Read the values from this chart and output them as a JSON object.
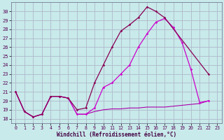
{
  "bg_color": "#c8eaea",
  "grid_color": "#b0b8cc",
  "xlabel": "Windchill (Refroidissement éolien,°C)",
  "xlim": [
    -0.5,
    23.5
  ],
  "ylim": [
    17.5,
    31.0
  ],
  "yticks": [
    18,
    19,
    20,
    21,
    22,
    23,
    24,
    25,
    26,
    27,
    28,
    29,
    30
  ],
  "xticks": [
    0,
    1,
    2,
    3,
    4,
    5,
    6,
    7,
    8,
    9,
    10,
    11,
    12,
    13,
    14,
    15,
    16,
    17,
    18,
    19,
    20,
    21,
    22,
    23
  ],
  "curve1_x": [
    0,
    1,
    2,
    3,
    4,
    5,
    6,
    7,
    8,
    9,
    10,
    11,
    12,
    13,
    14,
    15,
    16,
    17,
    18,
    19,
    20,
    21,
    22
  ],
  "curve1_y": [
    21.0,
    18.8,
    18.2,
    18.5,
    20.5,
    20.5,
    20.3,
    18.5,
    18.5,
    19.2,
    21.5,
    22.0,
    23.0,
    24.0,
    26.0,
    27.5,
    28.8,
    29.2,
    28.2,
    26.5,
    23.5,
    19.8,
    20.0
  ],
  "curve2_x": [
    0,
    1,
    2,
    3,
    4,
    5,
    6,
    7,
    8,
    9,
    10,
    11,
    12,
    13,
    14,
    15,
    16,
    17,
    22
  ],
  "curve2_y": [
    21.0,
    18.8,
    18.2,
    18.5,
    20.5,
    20.5,
    20.3,
    19.0,
    19.2,
    22.0,
    24.0,
    26.0,
    27.8,
    28.5,
    29.3,
    30.5,
    30.0,
    29.3,
    23.0
  ],
  "curve3_x": [
    0,
    1,
    2,
    3,
    4,
    5,
    6,
    7,
    8,
    9,
    10,
    11,
    12,
    13,
    14,
    15,
    16,
    17,
    18,
    19,
    20,
    21,
    22
  ],
  "curve3_y": [
    21.0,
    18.8,
    18.2,
    18.5,
    20.5,
    20.5,
    20.3,
    18.5,
    18.5,
    18.8,
    19.0,
    19.1,
    19.1,
    19.2,
    19.2,
    19.3,
    19.3,
    19.3,
    19.4,
    19.5,
    19.6,
    19.7,
    20.0
  ],
  "col_bright": "#cc00cc",
  "col_dark": "#880055"
}
